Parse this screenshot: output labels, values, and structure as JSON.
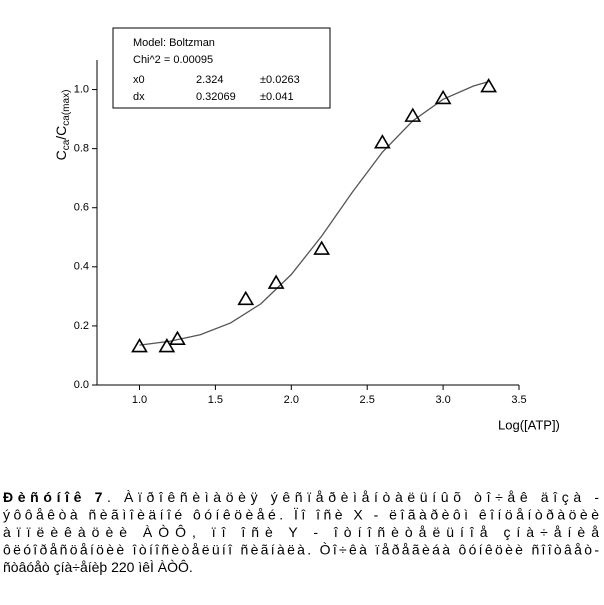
{
  "chart_data": {
    "type": "scatter",
    "xlabel": "Log([ATP])",
    "ylabel": [
      "C",
      "ca",
      "/C",
      "ca(max)"
    ],
    "xlim": [
      0.72,
      3.5
    ],
    "ylim": [
      0,
      1.1
    ],
    "xticks": [
      {
        "value": 1,
        "label": "1.0"
      },
      1.5,
      {
        "value": 2,
        "label": "2.0"
      },
      2.5,
      {
        "value": 3,
        "label": "3.0"
      },
      3.5
    ],
    "yticks": [
      {
        "value": 0,
        "label": "0.0"
      },
      0.2,
      0.4,
      0.6,
      0.8,
      {
        "value": 1,
        "label": "1.0"
      }
    ],
    "series": [
      {
        "name": "data",
        "color": "#000000",
        "marker": "triangle",
        "x": [
          1.0,
          1.18,
          1.25,
          1.7,
          1.9,
          2.2,
          2.6,
          2.8,
          3.0,
          3.3
        ],
        "values": [
          0.13,
          0.13,
          0.155,
          0.29,
          0.345,
          0.46,
          0.82,
          0.91,
          0.97,
          1.01
        ]
      },
      {
        "name": "fit",
        "color": "#555555",
        "marker": "line",
        "x": [
          1.0,
          1.2,
          1.4,
          1.6,
          1.8,
          2.0,
          2.2,
          2.4,
          2.6,
          2.8,
          3.0,
          3.2,
          3.3
        ],
        "values": [
          0.135,
          0.148,
          0.17,
          0.21,
          0.275,
          0.374,
          0.504,
          0.651,
          0.788,
          0.894,
          0.967,
          1.012,
          1.027
        ]
      }
    ],
    "fit_box": {
      "model": "Model: Boltzman",
      "chi2": "Chi^2 = 0.00095",
      "rows": [
        [
          "x0",
          "2.324",
          "±0.0263"
        ],
        [
          "dx",
          "0.32069",
          "±0.041"
        ]
      ]
    }
  },
  "caption": {
    "label": "Ðèñóíîê 7",
    "lines": [
      ". Àïðîêñèìàöèÿ ýêñïåðèìåíòàëüíûõ òî÷åê äîçà -",
      "ýôôåêòà ñèãìîèäíîé ôóíêöèåé. Ïî îñè X - ëîãàðèôì êîíöåíòðàöèè",
      "àïïëèêàöèè ÀÒÔ, ïî îñè Y - îòíîñèòåëüíîå çíà÷åíèå",
      "ôëóîðåñöåíöèè îòíîñèòåëüíî ñèãíàëà. Òî÷êà ïåðåãèáà ôóíêöèè ñîîòâåò-",
      "ñòâóåò çíà÷åíèþ 220 ìêÌ ÀÒÔ."
    ]
  }
}
